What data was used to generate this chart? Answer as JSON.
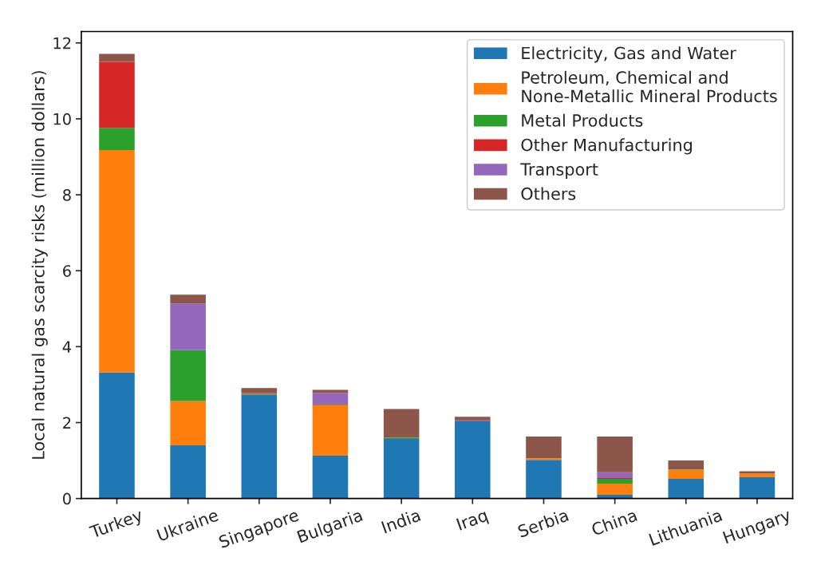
{
  "chart_data": {
    "type": "bar",
    "stacked": true,
    "ylabel": "Local natural gas scarcity risks (million dollars)",
    "categories": [
      "Turkey",
      "Ukraine",
      "Singapore",
      "Bulgaria",
      "India",
      "Iraq",
      "Serbia",
      "China",
      "Lithuania",
      "Hungary"
    ],
    "series": [
      {
        "name": "Electricity, Gas and Water",
        "color": "#1f77b4",
        "values": [
          3.32,
          1.4,
          2.73,
          1.13,
          1.57,
          2.05,
          1.02,
          0.1,
          0.52,
          0.56
        ]
      },
      {
        "name": "Petroleum, Chemical and\nNone-Metallic Mineral Products",
        "color": "#ff7f0e",
        "values": [
          5.86,
          1.17,
          0,
          1.32,
          0,
          0,
          0.04,
          0.29,
          0.24,
          0.1
        ]
      },
      {
        "name": "Metal Products",
        "color": "#2ca02c",
        "values": [
          0.58,
          1.34,
          0.02,
          0.02,
          0.03,
          0,
          0,
          0.13,
          0.01,
          0
        ]
      },
      {
        "name": "Other Manufacturing",
        "color": "#d62728",
        "values": [
          1.74,
          0,
          0.03,
          0.02,
          0,
          0.02,
          0,
          0.02,
          0,
          0
        ]
      },
      {
        "name": "Transport",
        "color": "#9467bd",
        "values": [
          0,
          1.23,
          0,
          0.29,
          0,
          0,
          0,
          0.15,
          0,
          0
        ]
      },
      {
        "name": "Others",
        "color": "#8c564b",
        "values": [
          0.21,
          0.23,
          0.13,
          0.08,
          0.76,
          0.08,
          0.57,
          0.94,
          0.23,
          0.06
        ]
      }
    ],
    "ylim": [
      0,
      12.3
    ],
    "yticks": [
      0,
      2,
      4,
      6,
      8,
      10,
      12
    ],
    "legend": "top right",
    "grid": false
  }
}
